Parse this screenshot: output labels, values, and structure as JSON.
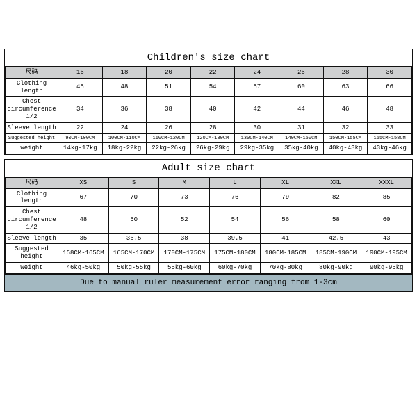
{
  "border_color": "#111111",
  "header_bg": "#cfd0d1",
  "note_bg": "#a3b8c1",
  "children": {
    "title": "Children's size chart",
    "col_label": "尺码",
    "sizes": [
      "16",
      "18",
      "20",
      "22",
      "24",
      "26",
      "28",
      "30"
    ],
    "row_labels": [
      "Clothing length",
      "Chest circumference 1/2",
      "Sleeve length",
      "Suggested height",
      "weight"
    ],
    "rows": [
      [
        "45",
        "48",
        "51",
        "54",
        "57",
        "60",
        "63",
        "66"
      ],
      [
        "34",
        "36",
        "38",
        "40",
        "42",
        "44",
        "46",
        "48"
      ],
      [
        "22",
        "24",
        "26",
        "28",
        "30",
        "31",
        "32",
        "33"
      ],
      [
        "90CM-100CM",
        "100CM-110CM",
        "110CM-120CM",
        "120CM-130CM",
        "130CM-140CM",
        "140CM-150CM",
        "150CM-155CM",
        "155CM-158CM"
      ],
      [
        "14kg-17kg",
        "18kg-22kg",
        "22kg-26kg",
        "26kg-29kg",
        "29kg-35kg",
        "35kg-40kg",
        "40kg-43kg",
        "43kg-46kg"
      ]
    ]
  },
  "adult": {
    "title": "Adult size chart",
    "col_label": "尺码",
    "sizes": [
      "XS",
      "S",
      "M",
      "L",
      "XL",
      "XXL",
      "XXXL"
    ],
    "row_labels": [
      "Clothing length",
      "Chest circumference 1/2",
      "Sleeve length",
      "Suggested height",
      "weight"
    ],
    "rows": [
      [
        "67",
        "70",
        "73",
        "76",
        "79",
        "82",
        "85"
      ],
      [
        "48",
        "50",
        "52",
        "54",
        "56",
        "58",
        "60"
      ],
      [
        "35",
        "36.5",
        "38",
        "39.5",
        "41",
        "42.5",
        "43"
      ],
      [
        "158CM-165CM",
        "165CM-170CM",
        "170CM-175CM",
        "175CM-180CM",
        "180CM-185CM",
        "185CM-190CM",
        "190CM-195CM"
      ],
      [
        "46kg-50kg",
        "50kg-55kg",
        "55kg-60kg",
        "60kg-70kg",
        "70kg-80kg",
        "80kg-90kg",
        "90kg-95kg"
      ]
    ],
    "note": "Due to manual ruler measurement error ranging from 1-3cm"
  }
}
